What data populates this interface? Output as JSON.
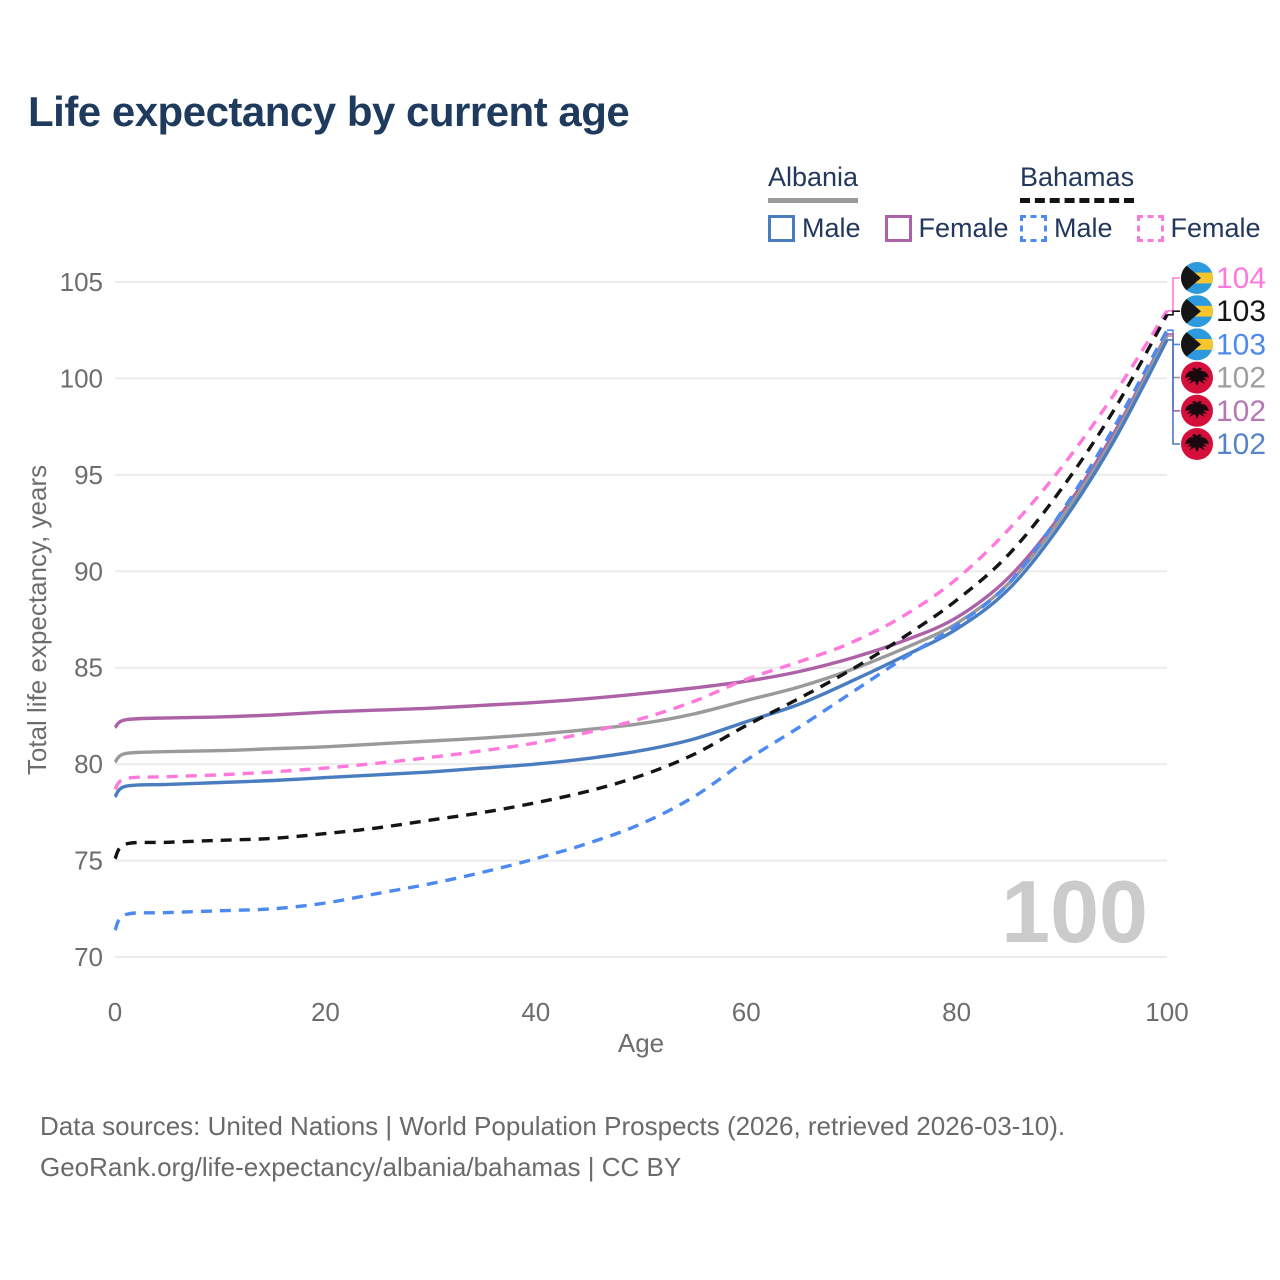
{
  "title": "Life expectancy by current age",
  "legend": {
    "groups": [
      {
        "label": "Albania",
        "line_style": "solid",
        "underline_color": "#9a9a9a",
        "items": [
          {
            "label": "Male",
            "color": "#4a7cc0",
            "dash": false
          },
          {
            "label": "Female",
            "color": "#ad62a7",
            "dash": false
          }
        ]
      },
      {
        "label": "Bahamas",
        "line_style": "dashed",
        "underline_color": "#141414",
        "items": [
          {
            "label": "Male",
            "color": "#4d8af0",
            "dash": true
          },
          {
            "label": "Female",
            "color": "#ff78dc",
            "dash": true
          }
        ]
      }
    ]
  },
  "chart_data": {
    "type": "line",
    "title": "Life expectancy by current age",
    "xlabel": "Age",
    "ylabel": "Total life expectancy, years",
    "xlim": [
      0,
      100
    ],
    "ylim": [
      70,
      105
    ],
    "x_ticks": [
      0,
      20,
      40,
      60,
      80,
      100
    ],
    "y_ticks": [
      70,
      75,
      80,
      85,
      90,
      95,
      100,
      105
    ],
    "grid": "horizontal",
    "legend_position": "top-right",
    "x": [
      0,
      1,
      5,
      10,
      15,
      20,
      25,
      30,
      35,
      40,
      45,
      50,
      55,
      60,
      65,
      70,
      75,
      80,
      85,
      90,
      95,
      100
    ],
    "series": [
      {
        "name": "Albania Female",
        "country": "Albania",
        "sex": "Female",
        "color": "#ad62a7",
        "dash": false,
        "values": [
          81.9,
          82.3,
          82.4,
          82.45,
          82.55,
          82.7,
          82.8,
          82.9,
          83.05,
          83.2,
          83.4,
          83.65,
          83.95,
          84.3,
          84.8,
          85.5,
          86.4,
          87.6,
          89.7,
          93.0,
          97.2,
          102.3
        ]
      },
      {
        "name": "Albania Both sexes",
        "country": "Albania",
        "sex": "Both",
        "color": "#9a9a9a",
        "dash": false,
        "values": [
          80.1,
          80.55,
          80.65,
          80.7,
          80.8,
          80.9,
          81.05,
          81.2,
          81.35,
          81.55,
          81.8,
          82.1,
          82.6,
          83.3,
          84.0,
          84.9,
          86.0,
          87.3,
          89.4,
          92.8,
          97.0,
          102.2
        ]
      },
      {
        "name": "Albania Male",
        "country": "Albania",
        "sex": "Male",
        "color": "#4a7cc0",
        "dash": false,
        "values": [
          78.3,
          78.85,
          78.95,
          79.05,
          79.15,
          79.3,
          79.45,
          79.6,
          79.8,
          80.0,
          80.3,
          80.7,
          81.3,
          82.2,
          83.1,
          84.3,
          85.6,
          87.0,
          89.1,
          92.5,
          96.8,
          102.0
        ]
      },
      {
        "name": "Bahamas Female",
        "country": "Bahamas",
        "sex": "Female",
        "color": "#ff78dc",
        "dash": true,
        "values": [
          78.7,
          79.25,
          79.35,
          79.45,
          79.6,
          79.8,
          80.05,
          80.35,
          80.7,
          81.1,
          81.65,
          82.35,
          83.25,
          84.4,
          85.3,
          86.3,
          87.7,
          89.6,
          92.2,
          95.4,
          99.2,
          103.5
        ]
      },
      {
        "name": "Bahamas Both sexes",
        "country": "Bahamas",
        "sex": "Both",
        "color": "#141414",
        "dash": true,
        "values": [
          75.1,
          75.85,
          75.95,
          76.05,
          76.15,
          76.4,
          76.7,
          77.1,
          77.5,
          78.0,
          78.6,
          79.4,
          80.5,
          82.0,
          83.4,
          84.9,
          86.6,
          88.5,
          90.9,
          94.3,
          98.4,
          103.3
        ]
      },
      {
        "name": "Bahamas Male",
        "country": "Bahamas",
        "sex": "Male",
        "color": "#4d8af0",
        "dash": true,
        "values": [
          71.4,
          72.2,
          72.3,
          72.4,
          72.5,
          72.8,
          73.3,
          73.8,
          74.4,
          75.1,
          75.9,
          76.9,
          78.3,
          80.2,
          81.9,
          83.7,
          85.5,
          87.2,
          89.4,
          93.1,
          97.5,
          102.5
        ]
      }
    ],
    "end_labels": [
      {
        "text": "104",
        "series": "Bahamas Female",
        "color": "#ff78dc",
        "flag": "bahamas"
      },
      {
        "text": "103",
        "series": "Bahamas Both sexes",
        "color": "#141414",
        "flag": "bahamas"
      },
      {
        "text": "103",
        "series": "Bahamas Male",
        "color": "#4d8af0",
        "flag": "bahamas"
      },
      {
        "text": "102",
        "series": "Albania Both sexes",
        "color": "#9e9e9e",
        "flag": "albania"
      },
      {
        "text": "102",
        "series": "Albania Female",
        "color": "#b578b5",
        "flag": "albania"
      },
      {
        "text": "102",
        "series": "Albania Male",
        "color": "#5585c8",
        "flag": "albania"
      }
    ],
    "flag_colors": {
      "bahamas_aqua": "#2d9ade",
      "bahamas_gold": "#f6c62e",
      "bahamas_black": "#161616",
      "albania_red": "#d40f3c",
      "albania_eagle": "#19090e"
    }
  },
  "watermark": "100",
  "footer": {
    "line1": "Data sources: United Nations | World Population Prospects (2026, retrieved 2026-03-10).",
    "line2": "GeoRank.org/life-expectancy/albania/bahamas | CC BY"
  }
}
